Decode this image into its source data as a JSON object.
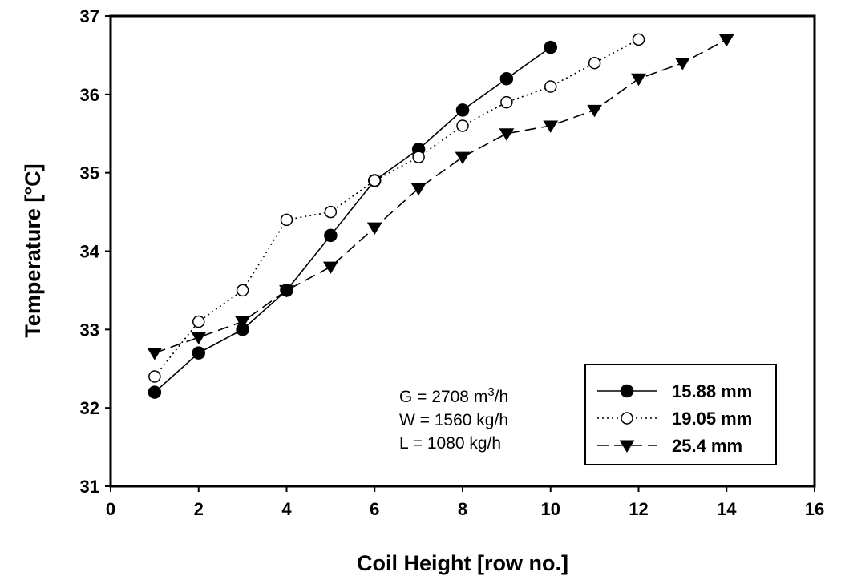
{
  "chart_data": {
    "type": "line",
    "xlabel": "Coil Height [row no.]",
    "ylabel": "Temperature [°C]",
    "xlim": [
      0,
      16
    ],
    "ylim": [
      31,
      37
    ],
    "xticks": [
      "0",
      "2",
      "4",
      "6",
      "8",
      "10",
      "12",
      "14",
      "16"
    ],
    "yticks": [
      "31",
      "32",
      "33",
      "34",
      "35",
      "36",
      "37"
    ],
    "grid": false,
    "legend_position": "bottom-right",
    "annotations": [
      {
        "label": "G = 2708 m",
        "superscript": "3",
        "suffix": "/h"
      },
      {
        "label": "W = 1560 kg/h"
      },
      {
        "label": "L = 1080 kg/h"
      }
    ],
    "series": [
      {
        "name": "15.88 mm",
        "marker": "filled-circle",
        "line_style": "solid",
        "x": [
          1,
          2,
          3,
          4,
          5,
          6,
          7,
          8,
          9,
          10
        ],
        "y": [
          32.2,
          32.7,
          33.0,
          33.5,
          34.2,
          34.9,
          35.3,
          35.8,
          36.2,
          36.6
        ]
      },
      {
        "name": "19.05 mm",
        "marker": "open-circle",
        "line_style": "dotted",
        "x": [
          1,
          2,
          3,
          4,
          5,
          6,
          7,
          8,
          9,
          10,
          11,
          12
        ],
        "y": [
          32.4,
          33.1,
          33.5,
          34.4,
          34.5,
          34.9,
          35.2,
          35.6,
          35.9,
          36.1,
          36.4,
          36.7
        ]
      },
      {
        "name": "25.4 mm",
        "marker": "filled-triangle-down",
        "line_style": "dashed",
        "x": [
          1,
          2,
          3,
          4,
          5,
          6,
          7,
          8,
          9,
          10,
          11,
          12,
          13,
          14
        ],
        "y": [
          32.7,
          32.9,
          33.1,
          33.5,
          33.8,
          34.3,
          34.8,
          35.2,
          35.5,
          35.6,
          35.8,
          36.2,
          36.4,
          36.7
        ]
      }
    ]
  }
}
